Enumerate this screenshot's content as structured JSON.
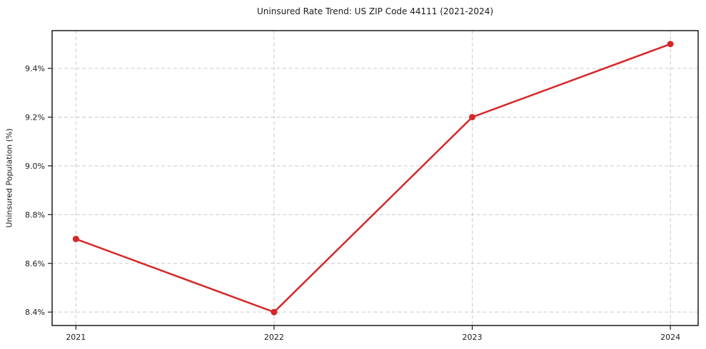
{
  "chart_data": {
    "type": "line",
    "title": "Uninsured Rate Trend: US ZIP Code 44111 (2021-2024)",
    "xlabel": "",
    "ylabel": "Uninsured Population (%)",
    "x": [
      2021,
      2022,
      2023,
      2024
    ],
    "values": [
      8.7,
      8.4,
      9.2,
      9.5
    ],
    "xticks": [
      "2021",
      "2022",
      "2023",
      "2024"
    ],
    "yticks": [
      "8.4%",
      "8.6%",
      "8.8%",
      "9.0%",
      "9.2%",
      "9.4%"
    ],
    "ytick_values": [
      8.4,
      8.6,
      8.8,
      9.0,
      9.2,
      9.4
    ],
    "xlim": [
      2020.88,
      2024.14
    ],
    "ylim": [
      8.345,
      9.555
    ],
    "grid": true,
    "legend_position": "none",
    "line_color": "#d62728",
    "marker": "circle",
    "grid_color": "#c9c9c9",
    "axis_color": "#1a1a1a",
    "text_color": "#1a1a1a",
    "background_color": "#ffffff"
  }
}
